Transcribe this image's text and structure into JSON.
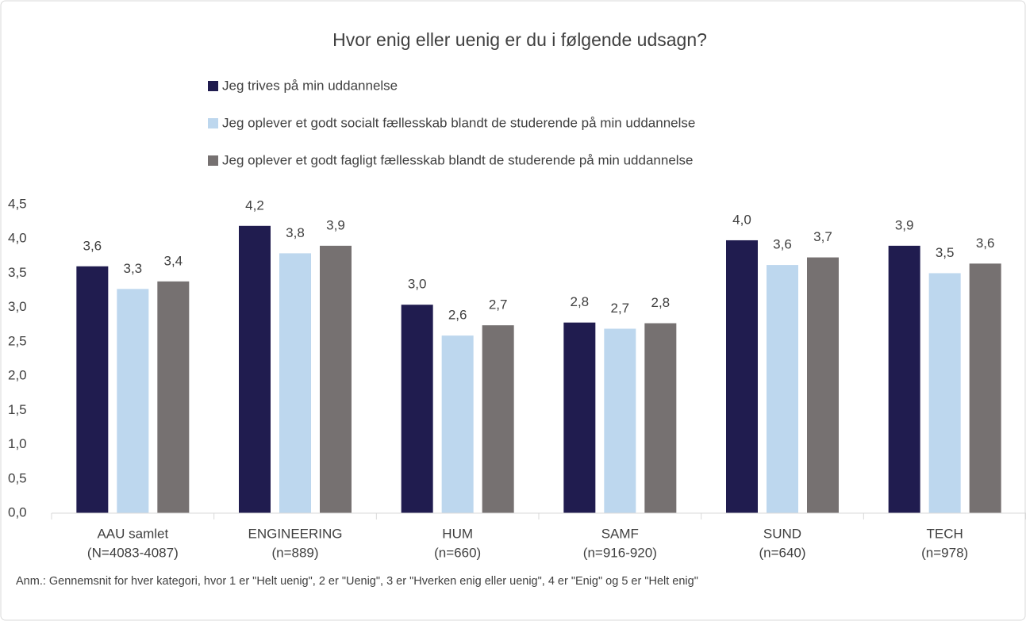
{
  "chart_data": {
    "type": "bar",
    "title": "Hvor enig eller uenig er du i følgende udsagn?",
    "categories": [
      [
        "AAU samlet",
        "(N=4083-4087)"
      ],
      [
        "ENGINEERING",
        "(n=889)"
      ],
      [
        "HUM",
        "(n=660)"
      ],
      [
        "SAMF",
        "(n=916-920)"
      ],
      [
        "SUND",
        "(n=640)"
      ],
      [
        "TECH",
        "(n=978)"
      ]
    ],
    "series": [
      {
        "name": "Jeg trives på min uddannelse",
        "color": "#201c4f",
        "values": [
          3.6,
          4.19,
          3.04,
          2.78,
          3.98,
          3.9
        ],
        "value_labels": [
          "3,6",
          "4,2",
          "3,0",
          "2,8",
          "4,0",
          "3,9"
        ]
      },
      {
        "name": "Jeg oplever et godt socialt fællesskab blandt de studerende på min uddannelse",
        "color": "#bdd7ee",
        "values": [
          3.27,
          3.79,
          2.59,
          2.69,
          3.62,
          3.5
        ],
        "value_labels": [
          "3,3",
          "3,8",
          "2,6",
          "2,7",
          "3,6",
          "3,5"
        ]
      },
      {
        "name": "Jeg oplever et godt fagligt fællesskab blandt de studerende på min uddannelse",
        "color": "#767171",
        "values": [
          3.38,
          3.9,
          2.74,
          2.77,
          3.73,
          3.64
        ],
        "value_labels": [
          "3,4",
          "3,9",
          "2,7",
          "2,8",
          "3,7",
          "3,6"
        ]
      }
    ],
    "ylim": [
      0,
      4.5
    ],
    "yticks": [
      {
        "value": 0,
        "label": "0,0"
      },
      {
        "value": 0.5,
        "label": "0,5"
      },
      {
        "value": 1,
        "label": "1,0"
      },
      {
        "value": 1.5,
        "label": "1,5"
      },
      {
        "value": 2,
        "label": "2,0"
      },
      {
        "value": 2.5,
        "label": "2,5"
      },
      {
        "value": 3,
        "label": "3,0"
      },
      {
        "value": 3.5,
        "label": "3,5"
      },
      {
        "value": 4,
        "label": "4,0"
      },
      {
        "value": 4.5,
        "label": "4,5"
      }
    ],
    "grid": false,
    "note": "Anm.: Gennemsnit for hver kategori, hvor 1 er \"Helt uenig\", 2 er \"Uenig\", 3 er \"Hverken enig eller uenig\", 4 er \"Enig\" og 5 er \"Helt enig\""
  }
}
